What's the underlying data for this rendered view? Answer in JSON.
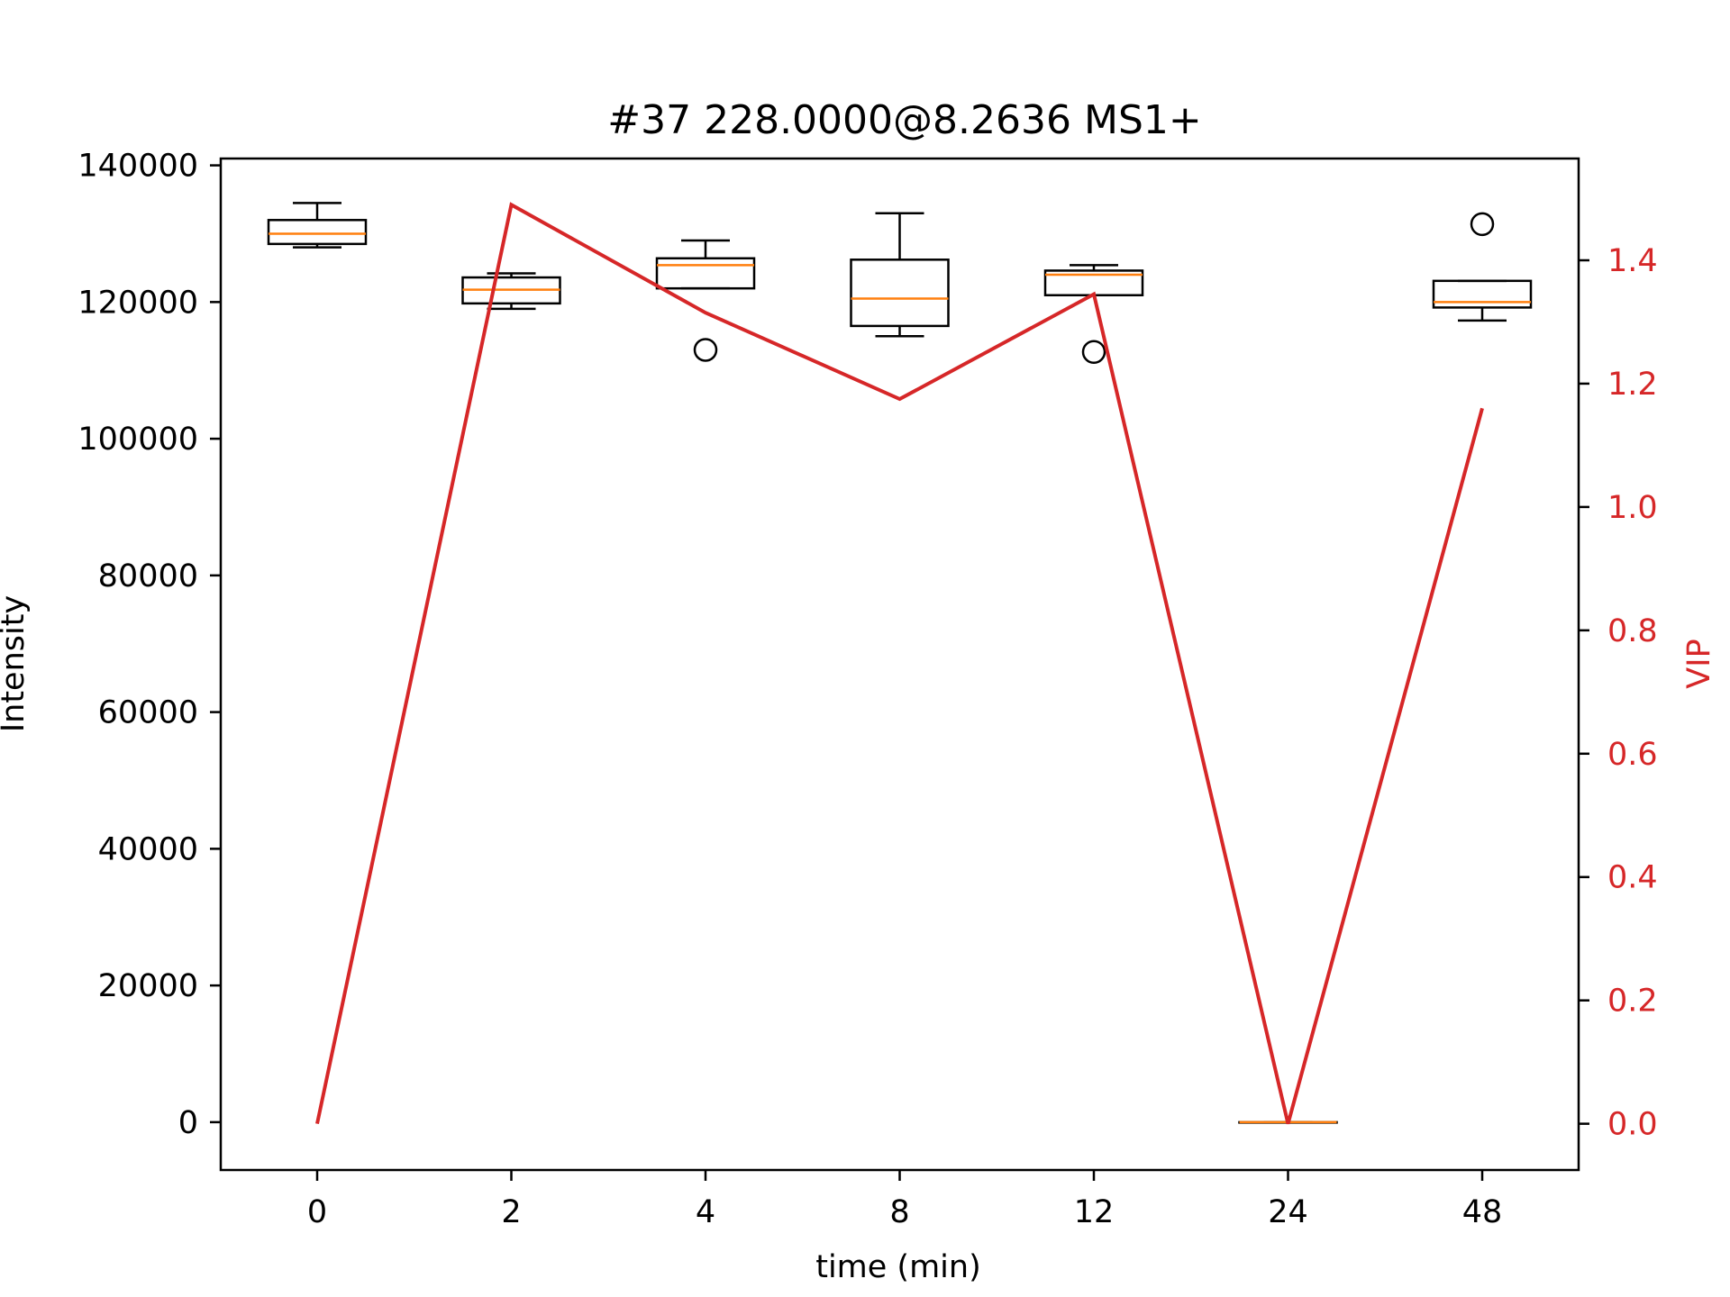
{
  "chart_data": {
    "type": "box+line",
    "title": "#37 228.0000@8.2636 MS1+",
    "xlabel": "time (min)",
    "ylabel": "Intensity",
    "y2label": "VIP",
    "categories": [
      "0",
      "2",
      "4",
      "8",
      "12",
      "24",
      "48"
    ],
    "ylim": [
      -7000,
      141000
    ],
    "y_ticks": [
      0,
      20000,
      40000,
      60000,
      80000,
      100000,
      120000,
      140000
    ],
    "y_tick_labels": [
      "0",
      "20000",
      "40000",
      "60000",
      "80000",
      "100000",
      "120000",
      "140000"
    ],
    "y2lim": [
      -0.075,
      1.565
    ],
    "y2_ticks": [
      0.0,
      0.2,
      0.4,
      0.6,
      0.8,
      1.0,
      1.2,
      1.4
    ],
    "y2_tick_labels": [
      "0.0",
      "0.2",
      "0.4",
      "0.6",
      "0.8",
      "1.0",
      "1.2",
      "1.4"
    ],
    "boxes": [
      {
        "category": "0",
        "whisker_low": 128000,
        "q1": 128500,
        "median": 130000,
        "q3": 132000,
        "whisker_high": 134500,
        "outliers": []
      },
      {
        "category": "2",
        "whisker_low": 119000,
        "q1": 119800,
        "median": 121800,
        "q3": 123600,
        "whisker_high": 124200,
        "outliers": []
      },
      {
        "category": "4",
        "whisker_low": 122000,
        "q1": 122000,
        "median": 125400,
        "q3": 126400,
        "whisker_high": 129000,
        "outliers": [
          113000
        ]
      },
      {
        "category": "8",
        "whisker_low": 115000,
        "q1": 116500,
        "median": 120500,
        "q3": 126200,
        "whisker_high": 133000,
        "outliers": []
      },
      {
        "category": "12",
        "whisker_low": 121000,
        "q1": 121000,
        "median": 124000,
        "q3": 124600,
        "whisker_high": 125400,
        "outliers": [
          112700
        ]
      },
      {
        "category": "24",
        "whisker_low": 0,
        "q1": 0,
        "median": 0,
        "q3": 0,
        "whisker_high": 0,
        "outliers": []
      },
      {
        "category": "48",
        "whisker_low": 117300,
        "q1": 119200,
        "median": 120000,
        "q3": 123100,
        "whisker_high": 123100,
        "outliers": [
          131400
        ]
      }
    ],
    "vip_series": {
      "values": [
        0.0,
        1.49,
        1.315,
        1.175,
        1.345,
        0.0,
        1.16
      ]
    },
    "colors": {
      "box": "#000000",
      "median": "#ff7f0e",
      "vip_line": "#d62728",
      "right_axis": "#d62728"
    },
    "grid": false
  }
}
